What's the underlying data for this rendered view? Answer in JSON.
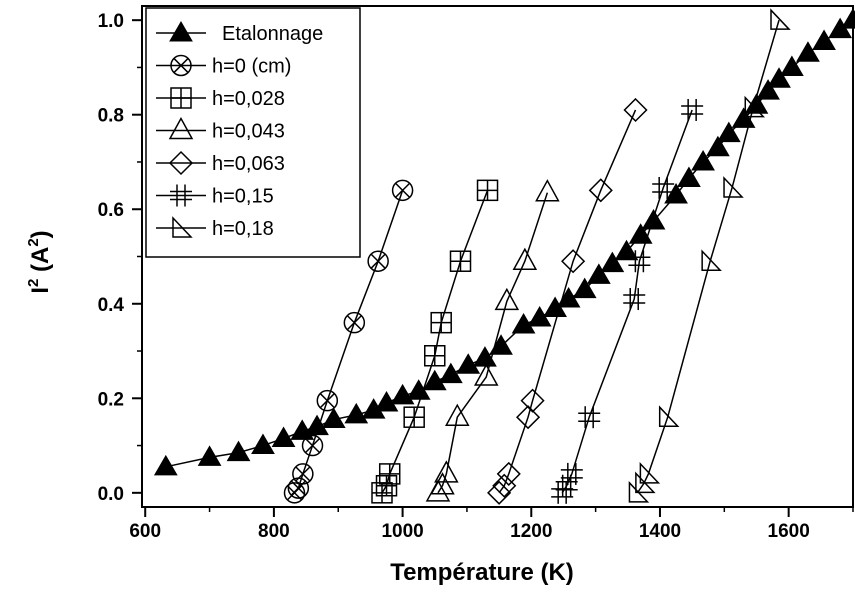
{
  "chart_data": {
    "type": "scatter",
    "title": "",
    "xlabel": "Température (K)",
    "ylabel_base": "I",
    "ylabel_exp": "2",
    "ylabel_unit_open": " (A",
    "ylabel_unit_exp": "2",
    "ylabel_unit_close": ")",
    "xlim": [
      595,
      1700
    ],
    "ylim": [
      -0.03,
      1.03
    ],
    "xticks": [
      600,
      800,
      1000,
      1200,
      1400,
      1600
    ],
    "yticks": [
      0.0,
      0.2,
      0.4,
      0.6,
      0.8,
      1.0
    ],
    "ytick_labels": [
      "0.0",
      "0.2",
      "0.4",
      "0.6",
      "0.8",
      "1.0"
    ],
    "legend_position": "top-left",
    "series": [
      {
        "name": "Etalonnage",
        "marker": "filled-triangle",
        "x": [
          632,
          700,
          745,
          783,
          815,
          844,
          867,
          893,
          928,
          955,
          975,
          1000,
          1025,
          1050,
          1075,
          1102,
          1128,
          1153,
          1188,
          1213,
          1237,
          1258,
          1283,
          1305,
          1326,
          1348,
          1370,
          1390,
          1425,
          1445,
          1467,
          1490,
          1507,
          1530,
          1550,
          1568,
          1585,
          1605,
          1630,
          1655,
          1680,
          1700
        ],
        "y": [
          0.055,
          0.075,
          0.085,
          0.1,
          0.115,
          0.13,
          0.14,
          0.155,
          0.165,
          0.175,
          0.19,
          0.205,
          0.215,
          0.235,
          0.25,
          0.27,
          0.285,
          0.31,
          0.355,
          0.37,
          0.39,
          0.41,
          0.43,
          0.46,
          0.485,
          0.51,
          0.545,
          0.575,
          0.63,
          0.665,
          0.7,
          0.73,
          0.76,
          0.79,
          0.82,
          0.85,
          0.875,
          0.9,
          0.93,
          0.955,
          0.98,
          1.0
        ]
      },
      {
        "name": "h=0 (cm)",
        "marker": "circle-cross",
        "x": [
          832,
          838,
          845,
          860,
          883,
          925,
          962,
          1000
        ],
        "y": [
          0.0,
          0.01,
          0.04,
          0.1,
          0.195,
          0.36,
          0.49,
          0.64
        ]
      },
      {
        "name": "h=0,028",
        "marker": "square-plus",
        "x": [
          968,
          975,
          980,
          1018,
          1050,
          1060,
          1090,
          1132
        ],
        "y": [
          0.0,
          0.015,
          0.04,
          0.16,
          0.29,
          0.36,
          0.49,
          0.64
        ]
      },
      {
        "name": "h=0,043",
        "marker": "open-triangle",
        "x": [
          1055,
          1062,
          1068,
          1085,
          1130,
          1162,
          1190,
          1225
        ],
        "y": [
          0.0,
          0.015,
          0.04,
          0.16,
          0.245,
          0.405,
          0.49,
          0.635
        ]
      },
      {
        "name": "h=0,063",
        "marker": "open-diamond",
        "x": [
          1150,
          1158,
          1165,
          1195,
          1202,
          1265,
          1308,
          1362
        ],
        "y": [
          0.0,
          0.015,
          0.04,
          0.16,
          0.195,
          0.49,
          0.64,
          0.81
        ]
      },
      {
        "name": "h=0,15",
        "marker": "hash",
        "x": [
          1248,
          1255,
          1263,
          1290,
          1360,
          1368,
          1405,
          1450
        ],
        "y": [
          0.0,
          0.015,
          0.04,
          0.16,
          0.41,
          0.49,
          0.645,
          0.81
        ]
      },
      {
        "name": "h=0,18",
        "marker": "right-triangle",
        "x": [
          1365,
          1375,
          1382,
          1412,
          1478,
          1512,
          1545,
          1585
        ],
        "y": [
          0.0,
          0.02,
          0.04,
          0.16,
          0.49,
          0.645,
          0.815,
          1.0
        ]
      }
    ]
  }
}
